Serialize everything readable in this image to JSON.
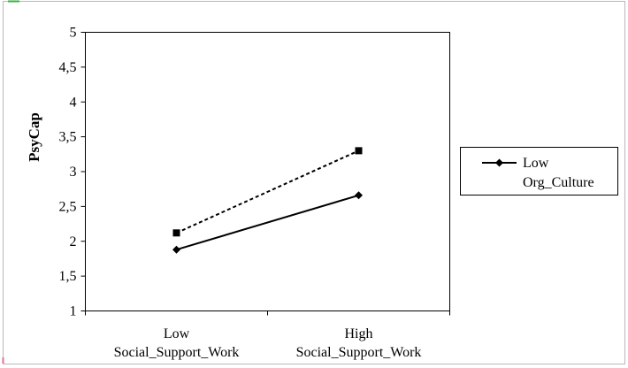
{
  "chart_data": {
    "type": "line",
    "categories": [
      "Low Social_Support_Work",
      "High Social_Support_Work"
    ],
    "category_lines": [
      [
        "Low",
        "Social_Support_Work"
      ],
      [
        "High",
        "Social_Support_Work"
      ]
    ],
    "ylabel": "PsyCap",
    "ylim": [
      1,
      5
    ],
    "yticks": [
      1,
      1.5,
      2,
      2.5,
      3,
      3.5,
      4,
      4.5,
      5
    ],
    "ytick_labels": [
      "1",
      "1,5",
      "2",
      "2,5",
      "3",
      "3,5",
      "4",
      "4,5",
      "5"
    ],
    "grid": false,
    "legend_position": "right",
    "series": [
      {
        "name": "Low Org_Culture",
        "legend_lines": [
          "Low",
          "Org_Culture"
        ],
        "values": [
          1.88,
          2.66
        ],
        "marker": "diamond",
        "style": "solid",
        "color": "#000000"
      },
      {
        "values": [
          2.12,
          3.3
        ],
        "marker": "square",
        "style": "dashed",
        "color": "#000000"
      }
    ]
  },
  "colors": {
    "frame_border": "#b8b8b8",
    "corner_mark_green": "#3cb043",
    "corner_mark_pink": "#e070a0"
  }
}
